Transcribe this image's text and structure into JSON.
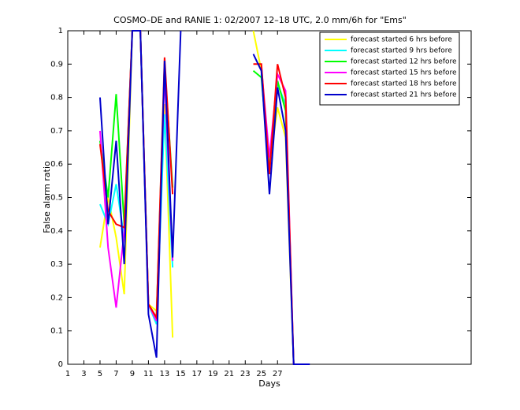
{
  "chart_data": {
    "type": "line",
    "title": "COSMO–DE and RANIE 1: 02/2007 12–18 UTC, 2.0 mm/6h for \"Ems\"",
    "xlabel": "Days",
    "ylabel": "False alarm ratio",
    "x": [
      5,
      6,
      7,
      8,
      9,
      10,
      11,
      12,
      13,
      14,
      15,
      16,
      17,
      18,
      19,
      20,
      21,
      22,
      23,
      24,
      25,
      26,
      27,
      28,
      29,
      30,
      31
    ],
    "xlim": [
      1,
      51
    ],
    "xticks": [
      1,
      3,
      5,
      7,
      9,
      11,
      13,
      15,
      17,
      19,
      21,
      23,
      25,
      27
    ],
    "ylim": [
      0,
      1
    ],
    "yticks": [
      0,
      0.1,
      0.2,
      0.3,
      0.4,
      0.5,
      0.6,
      0.7,
      0.8,
      0.9,
      1
    ],
    "legend": "northeast",
    "series": [
      {
        "name": "forecast started 6 hrs before",
        "color": "#ffff00",
        "values": [
          0.35,
          0.5,
          0.38,
          0.21,
          1,
          1,
          0.18,
          0.16,
          0.78,
          0.08,
          null,
          null,
          null,
          null,
          null,
          null,
          null,
          null,
          null,
          1.0,
          0.88,
          0.59,
          0.77,
          0.68,
          0,
          null,
          null
        ]
      },
      {
        "name": "forecast started 9 hrs before",
        "color": "#00ffff",
        "values": [
          0.48,
          0.42,
          0.54,
          0.38,
          1,
          1,
          0.18,
          0.12,
          0.75,
          0.29,
          null,
          null,
          null,
          null,
          null,
          null,
          null,
          null,
          null,
          null,
          0.87,
          0.6,
          0.84,
          0.78,
          0,
          null,
          null
        ]
      },
      {
        "name": "forecast started 12 hrs before",
        "color": "#00ff00",
        "values": [
          0.67,
          0.5,
          0.81,
          0.42,
          1,
          1,
          0.18,
          0.14,
          0.9,
          0.53,
          null,
          null,
          null,
          null,
          null,
          null,
          null,
          null,
          null,
          0.88,
          0.86,
          0.58,
          0.85,
          0.76,
          0,
          null,
          null
        ]
      },
      {
        "name": "forecast started 15 hrs before",
        "color": "#ff00ff",
        "values": [
          0.7,
          0.35,
          0.17,
          0.4,
          1,
          1,
          0.18,
          0.13,
          0.87,
          0.31,
          null,
          null,
          null,
          null,
          null,
          null,
          null,
          null,
          null,
          null,
          0.89,
          0.62,
          0.87,
          0.82,
          0,
          null,
          null
        ]
      },
      {
        "name": "forecast started 18 hrs before",
        "color": "#ff0000",
        "values": [
          0.66,
          0.46,
          0.42,
          0.41,
          1,
          1,
          0.18,
          0.14,
          0.92,
          0.51,
          null,
          null,
          null,
          null,
          null,
          null,
          null,
          null,
          null,
          0.9,
          0.9,
          0.57,
          0.9,
          0.8,
          0,
          null,
          null
        ]
      },
      {
        "name": "forecast started 21 hrs before",
        "color": "#0000cc",
        "values": [
          0.8,
          0.42,
          0.67,
          0.3,
          1,
          1,
          0.15,
          0.02,
          0.91,
          0.32,
          1,
          null,
          null,
          null,
          null,
          null,
          null,
          null,
          null,
          0.93,
          0.88,
          0.51,
          0.83,
          0.7,
          0,
          0,
          0
        ]
      }
    ]
  }
}
